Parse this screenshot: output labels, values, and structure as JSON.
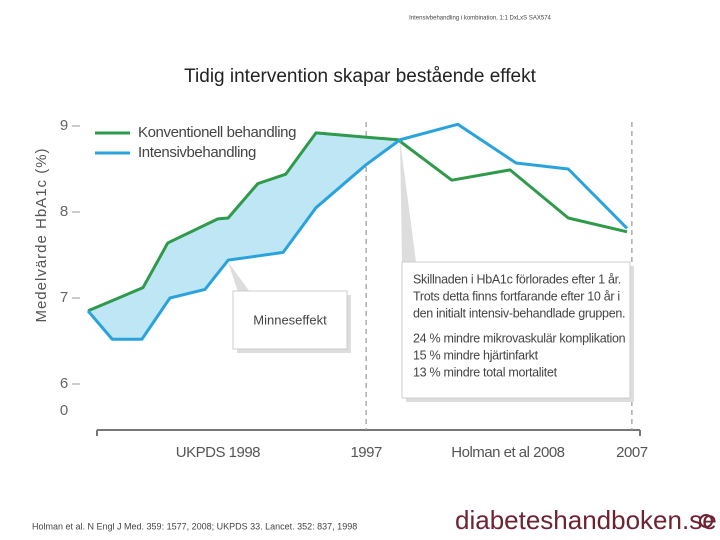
{
  "header_note": "Intensivbehandling i kombination, 1:1 DxLxS SAX574",
  "chart_data": {
    "type": "line",
    "title": "Tidig intervention skapar bestående effekt",
    "ylabel": "Medelvärde HbA1c (%)",
    "axis_break_label": "0",
    "ylim": [
      6,
      9
    ],
    "yticks": [
      6,
      7,
      8,
      9
    ],
    "xlim": [
      0,
      102
    ],
    "xticks": [
      {
        "value": 24.1,
        "label": "UKPDS 1998"
      },
      {
        "value": 51.6,
        "label": "1997"
      },
      {
        "value": 77.9,
        "label": "Holman et al 2008"
      },
      {
        "value": 100.9,
        "label": "2007"
      }
    ],
    "series": [
      {
        "name": "Konventionell behandling",
        "color": "#2e9a4a",
        "x": [
          0,
          10.2,
          14.8,
          24.1,
          26.0,
          31.5,
          36.7,
          42.3,
          51.4,
          57.5,
          67.5,
          78.3,
          89.1,
          100
        ],
        "values": [
          6.85,
          7.12,
          7.64,
          7.92,
          7.93,
          8.33,
          8.44,
          8.92,
          8.87,
          8.84,
          8.37,
          8.49,
          7.93,
          7.77
        ]
      },
      {
        "name": "Intensivbehandling",
        "color": "#2aa3dc",
        "x": [
          0,
          4.5,
          10.0,
          15.2,
          21.7,
          26.0,
          36.2,
          42.3,
          51.6,
          57.9,
          68.6,
          79.4,
          89.1,
          100
        ],
        "values": [
          6.85,
          6.52,
          6.52,
          7.0,
          7.1,
          7.44,
          7.53,
          8.05,
          8.55,
          8.84,
          9.02,
          8.57,
          8.5,
          7.81
        ]
      }
    ],
    "memory_fill_color": "#bfe6f5",
    "annotation_memory": "Minneseffekt",
    "annotation_box": [
      "Skillnaden i HbA1c förlorades efter 1 år.",
      "Trots detta finns fortfarande efter 10 år i",
      "den initialt intensiv-behandlade gruppen.",
      "24 % mindre mikrovaskulär komplikation",
      "15 % mindre hjärtinfarkt",
      "13 % mindre total mortalitet"
    ]
  },
  "footer": {
    "reference": "Holman et al. N Engl J Med. 359: 1577, 2008; UKPDS 33. Lancet. 352: 837, 1998",
    "logo": "diabeteshandboken.se"
  }
}
